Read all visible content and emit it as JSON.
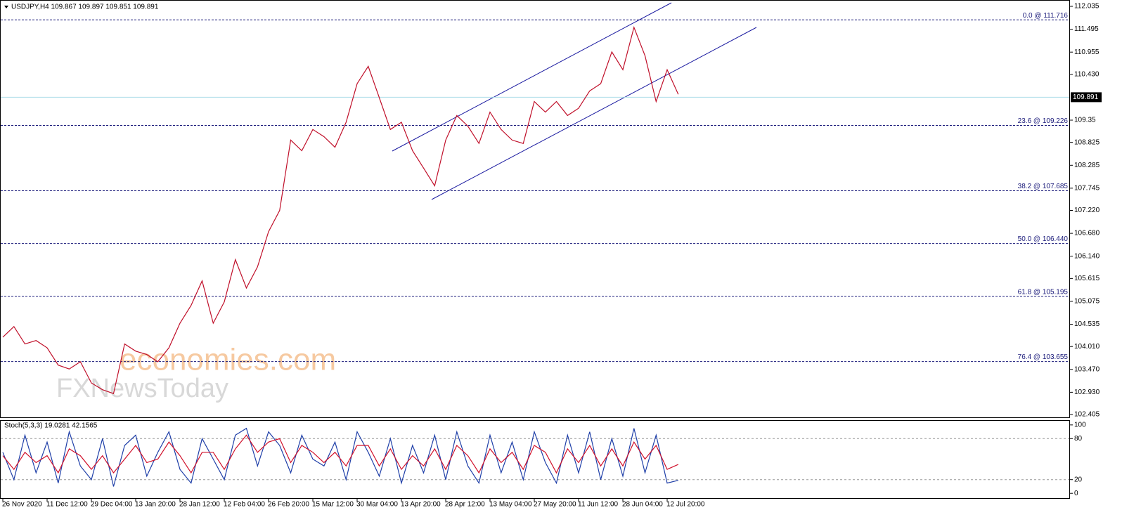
{
  "chart_data": [
    {
      "type": "line",
      "title": "USDJPY,H4  109.867 109.897 109.851 109.891",
      "categories": [
        "26 Nov 2020",
        null,
        null,
        null,
        "11 Dec 12:00",
        null,
        null,
        null,
        "29 Dec 04:00",
        null,
        null,
        null,
        "13 Jan 20:00",
        null,
        null,
        null,
        "28 Jan 12:00",
        null,
        null,
        null,
        "12 Feb 04:00",
        null,
        null,
        null,
        "26 Feb 20:00",
        null,
        null,
        null,
        "15 Mar 12:00",
        null,
        null,
        null,
        "30 Mar 04:00",
        null,
        null,
        null,
        "13 Apr 20:00",
        null,
        null,
        null,
        "28 Apr 12:00",
        null,
        null,
        null,
        "13 May 04:00",
        null,
        null,
        null,
        "27 May 20:00",
        null,
        null,
        null,
        "11 Jun 12:00",
        null,
        null,
        null,
        "28 Jun 04:00",
        null,
        null,
        null,
        "12 Jul 20:00",
        null
      ],
      "values": [
        104.23,
        104.48,
        104.07,
        104.15,
        103.98,
        103.57,
        103.48,
        103.65,
        103.15,
        102.99,
        102.9,
        104.07,
        103.9,
        103.82,
        103.65,
        103.98,
        104.56,
        104.98,
        105.56,
        104.56,
        105.06,
        106.06,
        105.39,
        105.89,
        106.72,
        107.22,
        108.88,
        108.63,
        109.13,
        108.96,
        108.71,
        109.3,
        110.21,
        110.62,
        109.88,
        109.13,
        109.3,
        108.63,
        108.22,
        107.8,
        108.88,
        109.46,
        109.21,
        108.8,
        109.54,
        109.13,
        108.88,
        108.8,
        109.79,
        109.54,
        109.79,
        109.46,
        109.63,
        110.04,
        110.21,
        110.96,
        110.54,
        111.54,
        110.87,
        109.79,
        110.54,
        109.96
      ],
      "color": "#c0102a",
      "ylim": [
        102.339,
        112.168
      ],
      "yticks": [
        112.035,
        111.495,
        110.955,
        {
          "value": 110.43,
          "label": "110.430"
        },
        109.35,
        108.825,
        108.285,
        107.745,
        {
          "value": 107.22,
          "label": "107.220"
        },
        {
          "value": 106.68,
          "label": "106.680"
        },
        {
          "value": 106.14,
          "label": "106.140"
        },
        105.615,
        105.075,
        104.535,
        {
          "value": 104.01,
          "label": "104.010"
        },
        {
          "value": 103.47,
          "label": "103.470"
        },
        {
          "value": 102.93,
          "label": "102.930"
        },
        102.405
      ],
      "last_price": 109.891,
      "levels": [
        {
          "label": "0.0 @ 111.716",
          "value": 111.716
        },
        {
          "label": "23.6 @ 109.226",
          "value": 109.226
        },
        {
          "label": "38.2 @ 107.685",
          "value": 107.685
        },
        {
          "label": "50.0 @ 106.440",
          "value": 106.44
        },
        {
          "label": "61.8 @ 105.195",
          "value": 105.195
        },
        {
          "label": "76.4 @ 103.655",
          "value": 103.655
        }
      ]
    },
    {
      "type": "line",
      "title": "Stoch(5,3,3) 19.0281 42.1565",
      "series": [
        {
          "color": "#1f3fa8",
          "values": [
            60,
            20,
            85,
            30,
            75,
            15,
            90,
            40,
            20,
            80,
            10,
            70,
            85,
            25,
            60,
            90,
            35,
            15,
            80,
            50,
            20,
            85,
            95,
            40,
            90,
            70,
            30,
            85,
            50,
            40,
            75,
            20,
            90,
            60,
            25,
            80,
            15,
            70,
            30,
            85,
            20,
            90,
            40,
            15,
            85,
            30,
            75,
            20,
            90,
            45,
            15,
            85,
            30,
            90,
            20,
            80,
            25,
            95,
            30,
            85,
            15,
            19.0281
          ]
        },
        {
          "color": "#d0102a",
          "values": [
            55,
            35,
            60,
            45,
            55,
            30,
            65,
            55,
            35,
            55,
            30,
            50,
            70,
            45,
            50,
            75,
            55,
            30,
            60,
            60,
            35,
            65,
            85,
            60,
            75,
            80,
            45,
            70,
            60,
            45,
            60,
            40,
            70,
            70,
            40,
            65,
            35,
            55,
            40,
            65,
            35,
            70,
            55,
            30,
            65,
            45,
            60,
            35,
            70,
            60,
            30,
            65,
            45,
            70,
            40,
            65,
            40,
            75,
            50,
            70,
            35,
            42.1565
          ]
        }
      ],
      "ylim": [
        -7,
        106
      ],
      "yticks": [
        100,
        80,
        20,
        0
      ],
      "levels": [
        80,
        20
      ]
    }
  ],
  "watermark": [
    "economies.com",
    "FXNewsToday"
  ]
}
